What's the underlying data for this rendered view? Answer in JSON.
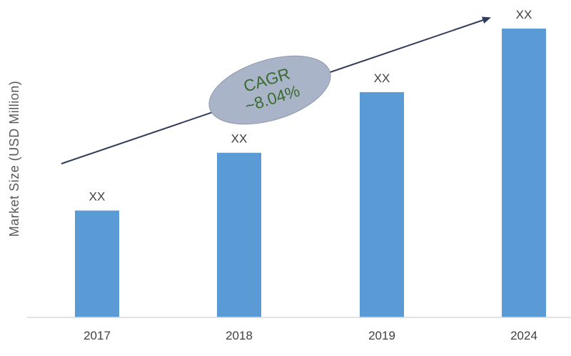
{
  "chart_data": {
    "type": "bar",
    "categories": [
      "2017",
      "2018",
      "2019",
      "2024"
    ],
    "values": [
      37,
      57,
      78,
      100
    ],
    "value_labels": [
      "XX",
      "XX",
      "XX",
      "XX"
    ],
    "title": "",
    "xlabel": "",
    "ylabel": "Market Size (USD Million)",
    "ylim": [
      0,
      100
    ],
    "grid": false,
    "legend": "none",
    "bar_color": "#5b9bd5",
    "annotation": {
      "line1": "CAGR",
      "line2": "~8.04%",
      "trend_arrow": true,
      "bubble_color": "#aab4c8",
      "arrow_color": "#2f3b5a",
      "text_color": "#3a6b2f"
    }
  }
}
